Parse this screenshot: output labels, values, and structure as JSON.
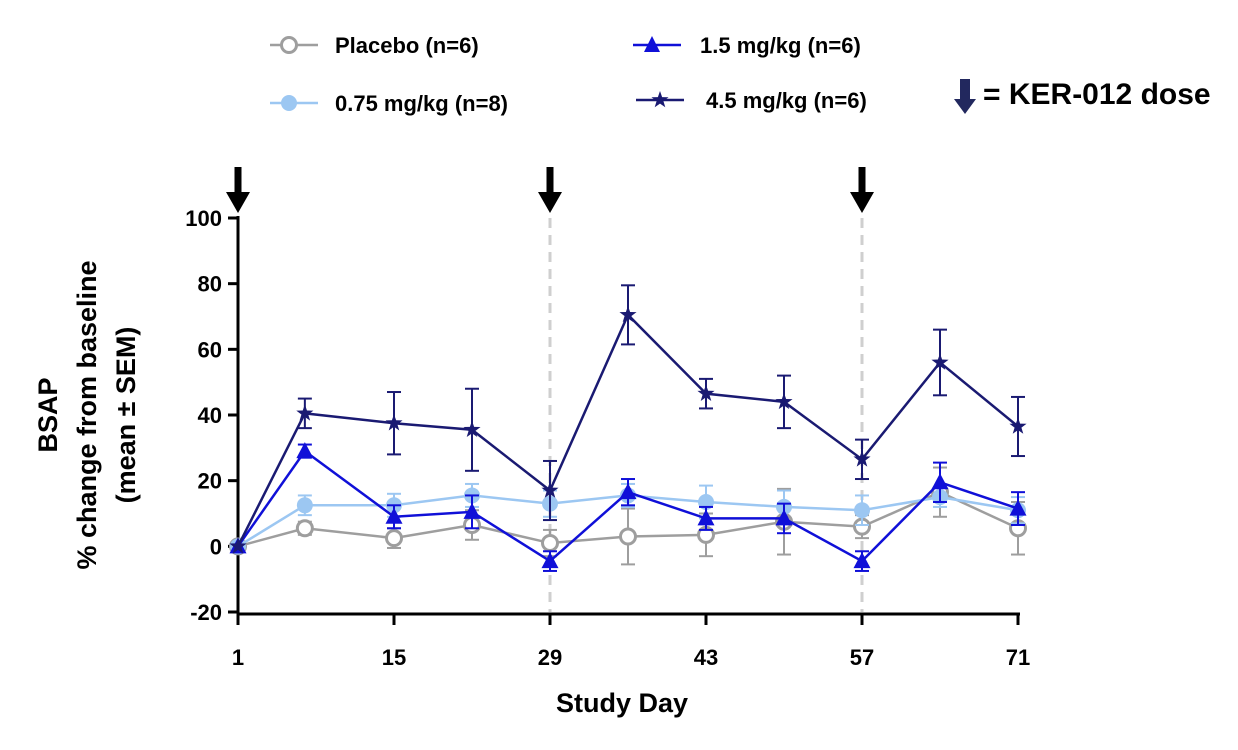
{
  "chart_data": {
    "type": "line",
    "title": "",
    "xlabel": "Study Day",
    "ylabel_lines": [
      "BSAP",
      "% change from baseline",
      "(mean ± SEM)"
    ],
    "xlim": [
      1,
      71
    ],
    "ylim": [
      -20,
      100
    ],
    "xticks": [
      1,
      15,
      29,
      43,
      57,
      71
    ],
    "yticks": [
      -20,
      0,
      20,
      40,
      60,
      80,
      100
    ],
    "dose_days": [
      1,
      29,
      57
    ],
    "dose_legend": "= KER-012 dose",
    "series": [
      {
        "name": "Placebo (n=6)",
        "color": "#9e9e9e",
        "marker": "open-circle",
        "x": [
          1,
          7,
          15,
          22,
          29,
          36,
          43,
          50,
          57,
          64,
          71
        ],
        "y": [
          0,
          5.5,
          2.5,
          6.5,
          1,
          3,
          3.5,
          7.5,
          6,
          16.5,
          5.5
        ],
        "err": [
          0,
          2,
          3,
          4.5,
          4,
          8.5,
          6.5,
          10,
          3.5,
          7.5,
          8
        ]
      },
      {
        "name": "0.75 mg/kg (n=8)",
        "color": "#9cc7f2",
        "marker": "filled-circle",
        "x": [
          1,
          7,
          15,
          22,
          29,
          36,
          43,
          50,
          57,
          64,
          71
        ],
        "y": [
          0,
          12.5,
          12.5,
          15.5,
          13,
          15.5,
          13.5,
          12,
          11,
          15,
          11
        ],
        "err": [
          0,
          3,
          3.5,
          3.5,
          4,
          3.5,
          5,
          5,
          4.5,
          3,
          4
        ]
      },
      {
        "name": "1.5 mg/kg (n=6)",
        "color": "#1010d8",
        "marker": "filled-triangle",
        "x": [
          1,
          7,
          15,
          22,
          29,
          36,
          43,
          50,
          57,
          64,
          71
        ],
        "y": [
          0,
          29,
          9,
          10.5,
          -4.5,
          16.5,
          8.5,
          8.5,
          -4.5,
          19.5,
          11.5
        ],
        "err": [
          0,
          2,
          3.5,
          5,
          3,
          4,
          3.5,
          4.5,
          3,
          6,
          5
        ]
      },
      {
        "name": "4.5 mg/kg (n=6)",
        "color": "#1a1a72",
        "marker": "filled-star",
        "x": [
          1,
          7,
          15,
          22,
          29,
          36,
          43,
          50,
          57,
          64,
          71
        ],
        "y": [
          0,
          40.5,
          37.5,
          35.5,
          17,
          70.5,
          46.5,
          44,
          26.5,
          56,
          36.5
        ],
        "err": [
          0,
          4.5,
          9.5,
          12.5,
          9,
          9,
          4.5,
          8,
          6,
          10,
          9
        ]
      }
    ]
  }
}
